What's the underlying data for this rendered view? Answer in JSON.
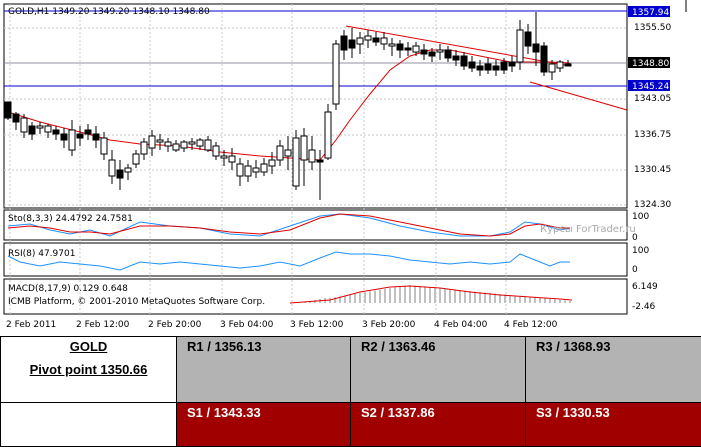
{
  "chart": {
    "header": "GOLD,H1  1349.20 1349.20 1348.10 1348.80",
    "price_ticks": [
      "1355.50",
      "1343.05",
      "1336.75",
      "1330.45",
      "1324.30"
    ],
    "price_labels": {
      "upper": "1357.94",
      "current": "1348.80",
      "lower": "1345.24"
    },
    "stoch_label": "Sto(8,3,3) 24.4792 24.7581",
    "stoch_ticks": [
      "100",
      "0"
    ],
    "rsi_label": "RSI(8) 47.9701",
    "rsi_ticks": [
      "100",
      "0"
    ],
    "macd_label": "MACD(8,17,9) 0.129 0.648",
    "macd_ticks": [
      "6.149",
      "-2.46"
    ],
    "copyright": "ICMB Platform, © 2001-2010 MetaQuotes Software Corp.",
    "watermark": "Курсы ForTrader.ru",
    "time_labels": [
      "2 Feb 2011",
      "2 Feb 12:00",
      "2 Feb 20:00",
      "3 Feb 04:00",
      "3 Feb 12:00",
      "3 Feb 20:00",
      "4 Feb 04:00",
      "4 Feb 12:00"
    ],
    "colors": {
      "bull": "#ffffff",
      "bear": "#000000",
      "ma": "#e00000",
      "hline": "#0000cc",
      "trend": "#e00000",
      "stoch_main": "#1e90ff",
      "stoch_signal": "#e00000",
      "rsi": "#1e90ff",
      "macd_hist": "#c0c0c0",
      "macd_signal": "#e00000"
    }
  },
  "pivot": {
    "symbol": "GOLD",
    "pivot_point": "Pivot point 1350.66",
    "r1": "R1 / 1356.13",
    "r2": "R2 / 1363.46",
    "r3": "R3 / 1368.93",
    "s1": "S1 / 1343.33",
    "s2": "S2 / 1337.86",
    "s3": "S3 / 1330.53"
  }
}
